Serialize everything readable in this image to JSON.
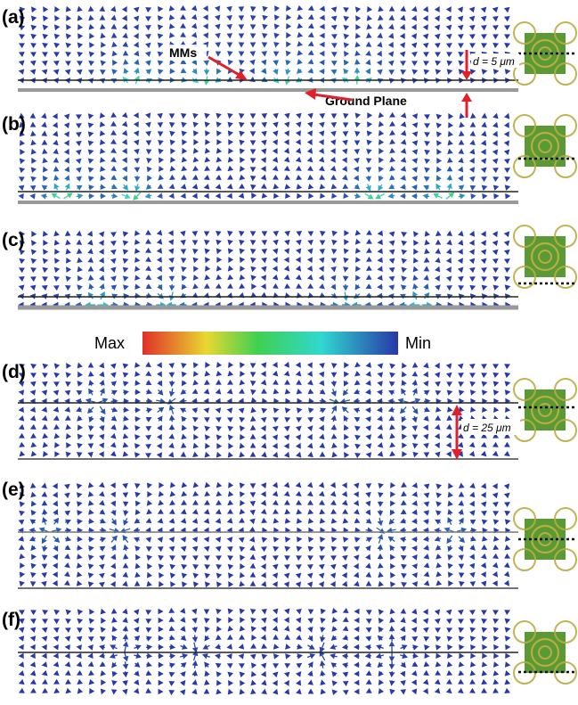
{
  "panels": [
    {
      "label": "(a)"
    },
    {
      "label": "(b)"
    },
    {
      "label": "(c)"
    },
    {
      "label": "(d)"
    },
    {
      "label": "(e)"
    },
    {
      "label": "(f)"
    }
  ],
  "annotations": {
    "mms": "MMs",
    "ground_plane": "Ground Plane",
    "gap_a": "d = 5 μm",
    "gap_d": "d = 25 μm"
  },
  "colorbar": {
    "max_label": "Max",
    "min_label": "Min"
  }
}
